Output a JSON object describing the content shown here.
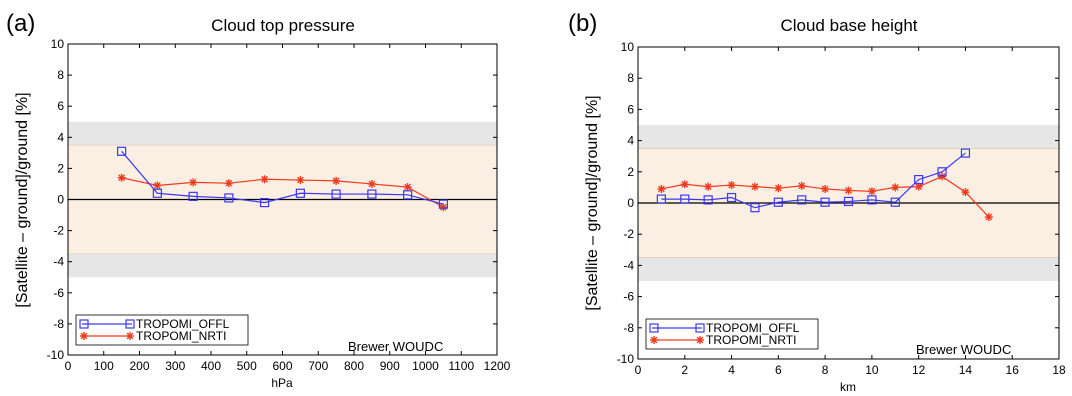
{
  "chart_data": [
    {
      "type": "line",
      "panel_label": "(a)",
      "title": "Cloud top pressure",
      "xlabel": "hPa",
      "ylabel": "[Satellite – ground]/ground [%]",
      "xlim": [
        0,
        1200
      ],
      "ylim": [
        -10,
        10
      ],
      "xticks": [
        0,
        100,
        200,
        300,
        400,
        500,
        600,
        700,
        800,
        900,
        1000,
        1100,
        1200
      ],
      "yticks": [
        -10,
        -8,
        -6,
        -4,
        -2,
        0,
        2,
        4,
        6,
        8,
        10
      ],
      "bands": [
        {
          "from": -3.5,
          "to": 3.5,
          "color": "#fbeee3"
        },
        {
          "from": 3.5,
          "to": 5,
          "color": "#e6e6e6"
        },
        {
          "from": -5,
          "to": -3.5,
          "color": "#e6e6e6"
        }
      ],
      "annotation": "Brewer WOUDC",
      "legend_position": "bottom-left",
      "grid": false,
      "series": [
        {
          "name": "TROPOMI_OFFL",
          "color": "#3a3af0",
          "marker": "square",
          "x": [
            150,
            250,
            350,
            450,
            550,
            650,
            750,
            850,
            950,
            1050
          ],
          "y": [
            3.1,
            0.4,
            0.2,
            0.1,
            -0.2,
            0.4,
            0.35,
            0.35,
            0.3,
            -0.3
          ]
        },
        {
          "name": "TROPOMI_NRTI",
          "color": "#f03a1e",
          "marker": "star",
          "x": [
            150,
            250,
            350,
            450,
            550,
            650,
            750,
            850,
            950,
            1050
          ],
          "y": [
            1.4,
            0.9,
            1.1,
            1.05,
            1.3,
            1.25,
            1.2,
            1.0,
            0.8,
            -0.5
          ]
        }
      ]
    },
    {
      "type": "line",
      "panel_label": "(b)",
      "title": "Cloud base height",
      "xlabel": "km",
      "ylabel": "[Satellite – ground]/ground [%]",
      "xlim": [
        0,
        18
      ],
      "ylim": [
        -10,
        10
      ],
      "xticks": [
        0,
        2,
        4,
        6,
        8,
        10,
        12,
        14,
        16,
        18
      ],
      "yticks": [
        -10,
        -8,
        -6,
        -4,
        -2,
        0,
        2,
        4,
        6,
        8,
        10
      ],
      "bands": [
        {
          "from": -3.5,
          "to": 3.5,
          "color": "#fbeee3"
        },
        {
          "from": 3.5,
          "to": 5,
          "color": "#e6e6e6"
        },
        {
          "from": -5,
          "to": -3.5,
          "color": "#e6e6e6"
        }
      ],
      "annotation": "Brewer WOUDC",
      "legend_position": "bottom-left",
      "grid": false,
      "series": [
        {
          "name": "TROPOMI_OFFL",
          "color": "#3a3af0",
          "marker": "square",
          "x": [
            1,
            2,
            3,
            4,
            5,
            6,
            7,
            8,
            9,
            10,
            11,
            12,
            13,
            14
          ],
          "y": [
            0.25,
            0.25,
            0.2,
            0.35,
            -0.3,
            0.05,
            0.2,
            0.05,
            0.1,
            0.2,
            0.05,
            1.5,
            2.0,
            3.2
          ]
        },
        {
          "name": "TROPOMI_NRTI",
          "color": "#f03a1e",
          "marker": "star",
          "x": [
            1,
            2,
            3,
            4,
            5,
            6,
            7,
            8,
            9,
            10,
            11,
            12,
            13,
            14,
            15
          ],
          "y": [
            0.9,
            1.2,
            1.05,
            1.15,
            1.05,
            0.95,
            1.1,
            0.9,
            0.8,
            0.75,
            1.0,
            1.05,
            1.7,
            0.7,
            -0.9
          ]
        }
      ]
    }
  ]
}
